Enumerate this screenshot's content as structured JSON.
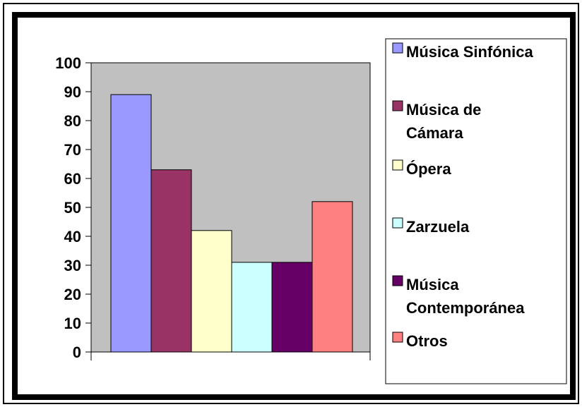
{
  "chart_data": {
    "type": "bar",
    "categories": [
      "Música Sinfónica",
      "Música de Cámara",
      "Ópera",
      "Zarzuela",
      "Música Contemporánea",
      "Otros"
    ],
    "series": [
      {
        "name": "Música Sinfónica",
        "value": 89,
        "color": "#9999ff"
      },
      {
        "name": "Música de Cámara",
        "value": 63,
        "color": "#993366"
      },
      {
        "name": "Ópera",
        "value": 42,
        "color": "#ffffcc"
      },
      {
        "name": "Zarzuela",
        "value": 31,
        "color": "#ccffff"
      },
      {
        "name": "Música Contemporánea",
        "value": 31,
        "color": "#660066"
      },
      {
        "name": "Otros",
        "value": 52,
        "color": "#ff8080"
      }
    ],
    "legend": {
      "entries": [
        {
          "lines": [
            "Música Sinfónica"
          ],
          "color": "#9999ff"
        },
        {
          "lines": [
            "Música de",
            "Cámara"
          ],
          "color": "#993366"
        },
        {
          "lines": [
            "Ópera"
          ],
          "color": "#ffffcc"
        },
        {
          "lines": [
            "Zarzuela"
          ],
          "color": "#ccffff"
        },
        {
          "lines": [
            "Música",
            "Contemporánea"
          ],
          "color": "#660066"
        },
        {
          "lines": [
            "Otros"
          ],
          "color": "#ff8080"
        }
      ],
      "position": "right"
    },
    "yticks": [
      0,
      10,
      20,
      30,
      40,
      50,
      60,
      70,
      80,
      90,
      100
    ],
    "ylim": [
      0,
      100
    ],
    "plot_background": "#c0c0c0",
    "grid": false
  }
}
